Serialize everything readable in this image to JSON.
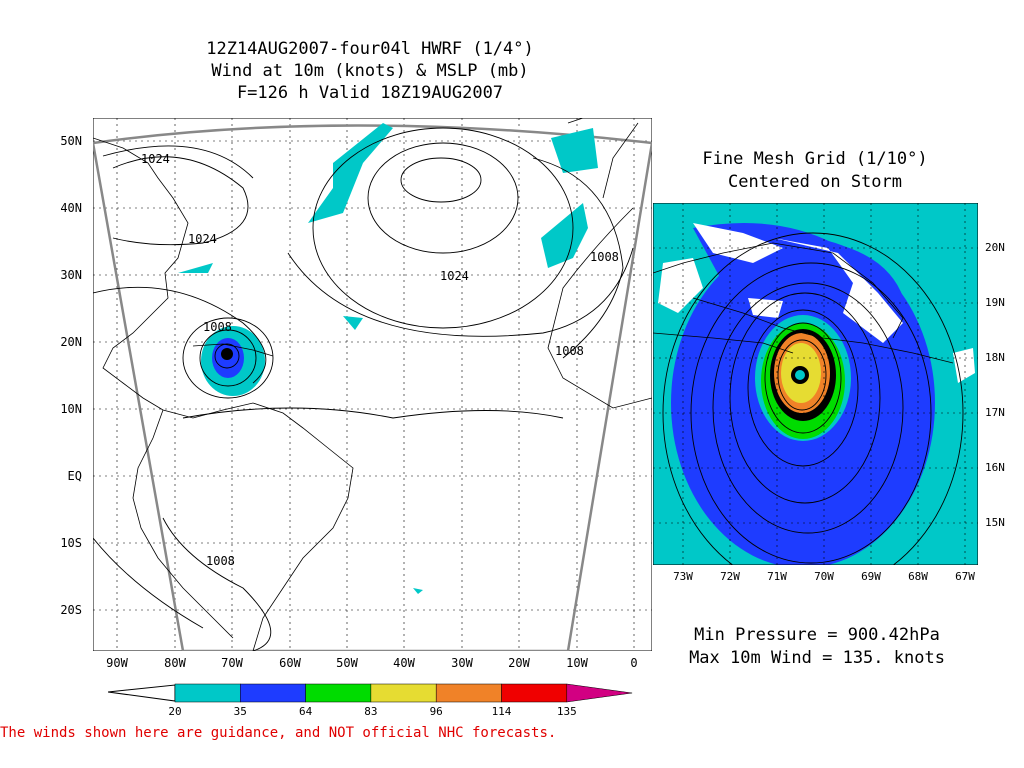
{
  "header": {
    "line1": "12Z14AUG2007-four04l HWRF (1/4°)",
    "line2": "Wind at 10m (knots) & MSLP (mb)",
    "line3": "F=126 h Valid 18Z19AUG2007"
  },
  "inset": {
    "line1": "Fine Mesh Grid (1/10°)",
    "line2": "Centered on Storm",
    "lat_labels": [
      "20N",
      "19N",
      "18N",
      "17N",
      "16N",
      "15N"
    ],
    "lon_labels": [
      "73W",
      "72W",
      "71W",
      "70W",
      "69W",
      "68W",
      "67W"
    ]
  },
  "main_map": {
    "lat_labels": [
      "50N",
      "40N",
      "30N",
      "20N",
      "10N",
      "EQ",
      "10S",
      "20S"
    ],
    "lon_labels": [
      "90W",
      "80W",
      "70W",
      "60W",
      "50W",
      "40W",
      "30W",
      "20W",
      "10W",
      "0"
    ],
    "isobar_labels": [
      "1024",
      "1024",
      "1024",
      "1008",
      "1008",
      "1008",
      "1008"
    ]
  },
  "stats": {
    "min_pressure": "Min Pressure = 900.42hPa",
    "max_wind": "Max 10m Wind = 135. knots"
  },
  "colorbar": {
    "colors": [
      "#00c8c8",
      "#1e3cff",
      "#00dc00",
      "#e6dc32",
      "#f08228",
      "#f00000",
      "#d20082"
    ],
    "ticks": [
      "20",
      "35",
      "64",
      "83",
      "96",
      "114",
      "135"
    ]
  },
  "disclaimer": "The winds shown here are guidance, and NOT official NHC forecasts."
}
